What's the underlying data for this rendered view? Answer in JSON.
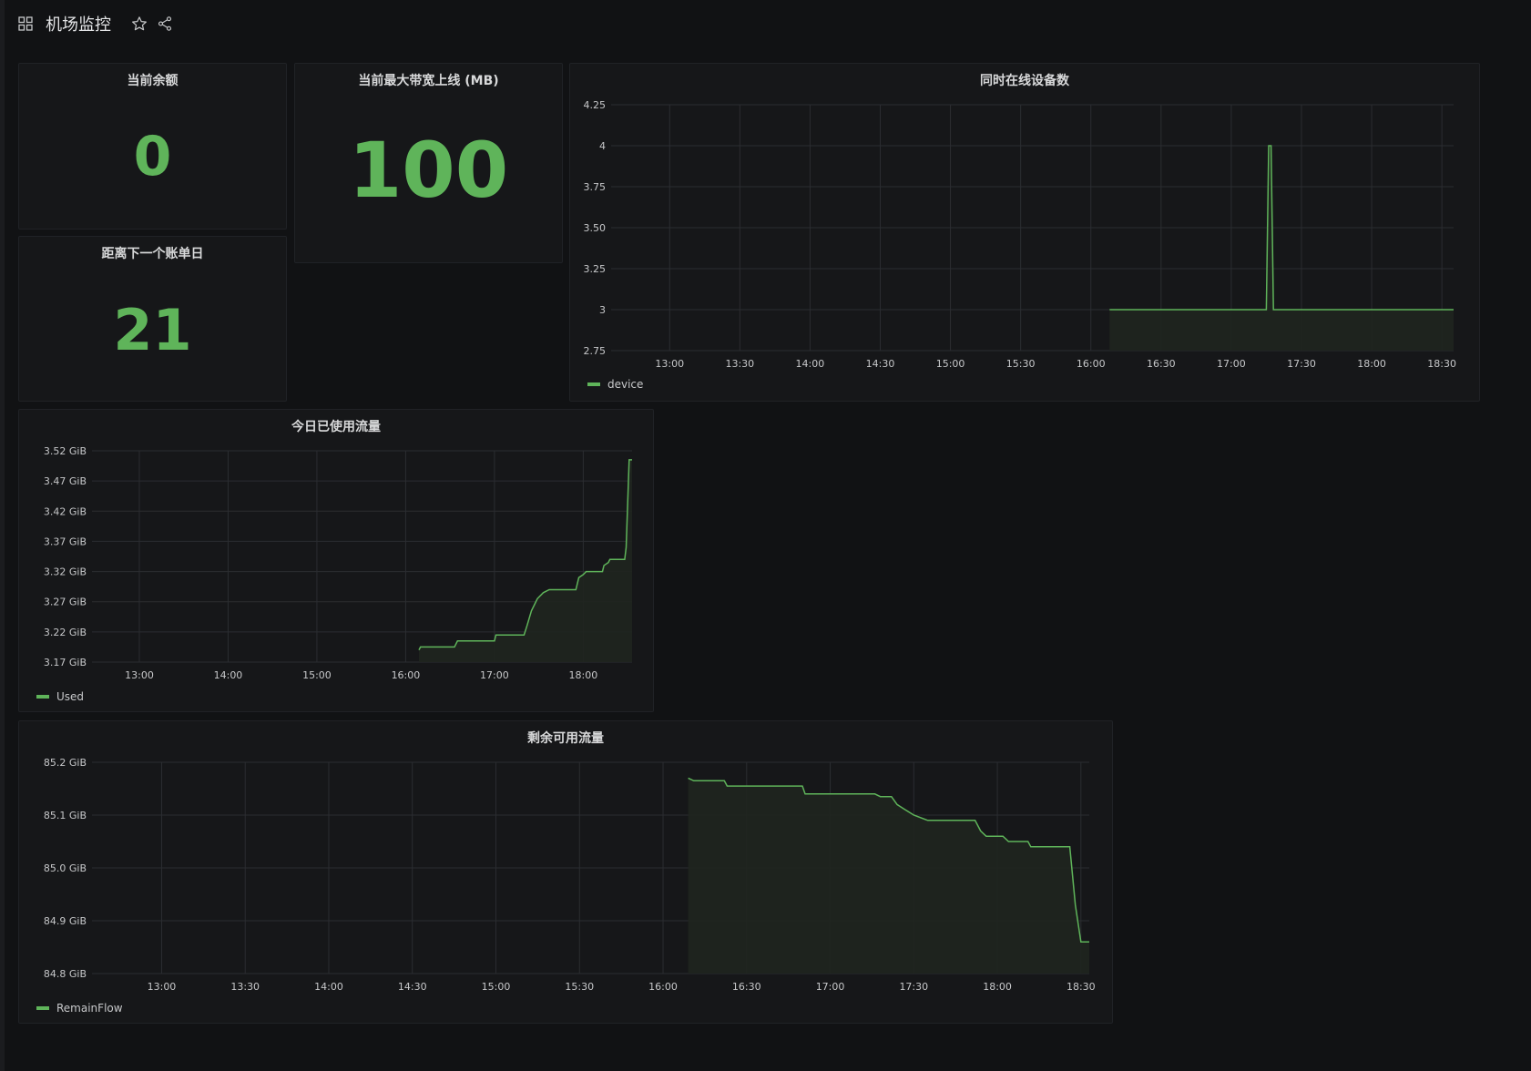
{
  "header": {
    "title": "机场监控",
    "icons": [
      "dashboard-grid-icon",
      "star-icon",
      "share-icon"
    ]
  },
  "colors": {
    "accent_green": "#5fb45a",
    "fill_green": "#1f251f",
    "background": "#111214",
    "panel": "#161719",
    "grid": "#2b2d31"
  },
  "panels": {
    "balance": {
      "title": "当前余额",
      "value": "0"
    },
    "bandwidth": {
      "title": "当前最大带宽上线 (MB)",
      "value": "100"
    },
    "next_bill": {
      "title": "距离下一个账单日",
      "value": "21"
    },
    "devices": {
      "title": "同时在线设备数",
      "legend": "device"
    },
    "used": {
      "title": "今日已使用流量",
      "legend": "Used"
    },
    "remain": {
      "title": "剩余可用流量",
      "legend": "RemainFlow"
    }
  },
  "chart_data": [
    {
      "id": "devices",
      "type": "area",
      "title": "同时在线设备数",
      "series_name": "device",
      "x_ticks": [
        "13:00",
        "13:30",
        "14:00",
        "14:30",
        "15:00",
        "15:30",
        "16:00",
        "16:30",
        "17:00",
        "17:30",
        "18:00",
        "18:30"
      ],
      "x_range": [
        "12:35",
        "18:35"
      ],
      "y_ticks": [
        "4.25",
        "4",
        "3.75",
        "3.50",
        "3.25",
        "3",
        "2.75"
      ],
      "ylim": [
        2.75,
        4.25
      ],
      "grid": true,
      "legend": "bottom-left",
      "points": [
        [
          "16:08",
          3
        ],
        [
          "17:15",
          3
        ],
        [
          "17:16",
          4
        ],
        [
          "17:17",
          4
        ],
        [
          "17:18",
          3
        ],
        [
          "18:35",
          3
        ]
      ]
    },
    {
      "id": "used",
      "type": "area",
      "title": "今日已使用流量",
      "series_name": "Used",
      "x_ticks": [
        "13:00",
        "14:00",
        "15:00",
        "16:00",
        "17:00",
        "18:00"
      ],
      "x_range": [
        "12:28",
        "18:33"
      ],
      "y_ticks": [
        "3.52 GiB",
        "3.47 GiB",
        "3.42 GiB",
        "3.37 GiB",
        "3.32 GiB",
        "3.27 GiB",
        "3.22 GiB",
        "3.17 GiB"
      ],
      "ylim": [
        3.17,
        3.52
      ],
      "grid": true,
      "legend": "bottom-left",
      "points": [
        [
          "16:09",
          3.19
        ],
        [
          "16:10",
          3.195
        ],
        [
          "16:33",
          3.195
        ],
        [
          "16:35",
          3.205
        ],
        [
          "17:00",
          3.205
        ],
        [
          "17:01",
          3.215
        ],
        [
          "17:20",
          3.215
        ],
        [
          "17:22",
          3.23
        ],
        [
          "17:25",
          3.255
        ],
        [
          "17:27",
          3.265
        ],
        [
          "17:29",
          3.275
        ],
        [
          "17:33",
          3.285
        ],
        [
          "17:37",
          3.29
        ],
        [
          "17:55",
          3.29
        ],
        [
          "17:57",
          3.31
        ],
        [
          "18:00",
          3.315
        ],
        [
          "18:02",
          3.32
        ],
        [
          "18:13",
          3.32
        ],
        [
          "18:14",
          3.33
        ],
        [
          "18:17",
          3.335
        ],
        [
          "18:18",
          3.34
        ],
        [
          "18:28",
          3.34
        ],
        [
          "18:29",
          3.36
        ],
        [
          "18:31",
          3.505
        ],
        [
          "18:33",
          3.505
        ]
      ]
    },
    {
      "id": "remain",
      "type": "area",
      "title": "剩余可用流量",
      "series_name": "RemainFlow",
      "x_ticks": [
        "13:00",
        "13:30",
        "14:00",
        "14:30",
        "15:00",
        "15:30",
        "16:00",
        "16:30",
        "17:00",
        "17:30",
        "18:00",
        "18:30"
      ],
      "x_range": [
        "12:35",
        "18:33"
      ],
      "y_ticks": [
        "85.2 GiB",
        "85.1 GiB",
        "85.0 GiB",
        "84.9 GiB",
        "84.8 GiB"
      ],
      "ylim": [
        84.8,
        85.2
      ],
      "grid": true,
      "legend": "bottom-left",
      "points": [
        [
          "16:09",
          85.17
        ],
        [
          "16:11",
          85.165
        ],
        [
          "16:22",
          85.165
        ],
        [
          "16:23",
          85.155
        ],
        [
          "16:50",
          85.155
        ],
        [
          "16:51",
          85.14
        ],
        [
          "17:16",
          85.14
        ],
        [
          "17:18",
          85.135
        ],
        [
          "17:22",
          85.135
        ],
        [
          "17:24",
          85.12
        ],
        [
          "17:27",
          85.11
        ],
        [
          "17:30",
          85.1
        ],
        [
          "17:35",
          85.09
        ],
        [
          "17:52",
          85.09
        ],
        [
          "17:54",
          85.07
        ],
        [
          "17:56",
          85.06
        ],
        [
          "18:02",
          85.06
        ],
        [
          "18:04",
          85.05
        ],
        [
          "18:11",
          85.05
        ],
        [
          "18:12",
          85.04
        ],
        [
          "18:26",
          85.04
        ],
        [
          "18:28",
          84.93
        ],
        [
          "18:30",
          84.86
        ],
        [
          "18:33",
          84.86
        ]
      ]
    }
  ]
}
